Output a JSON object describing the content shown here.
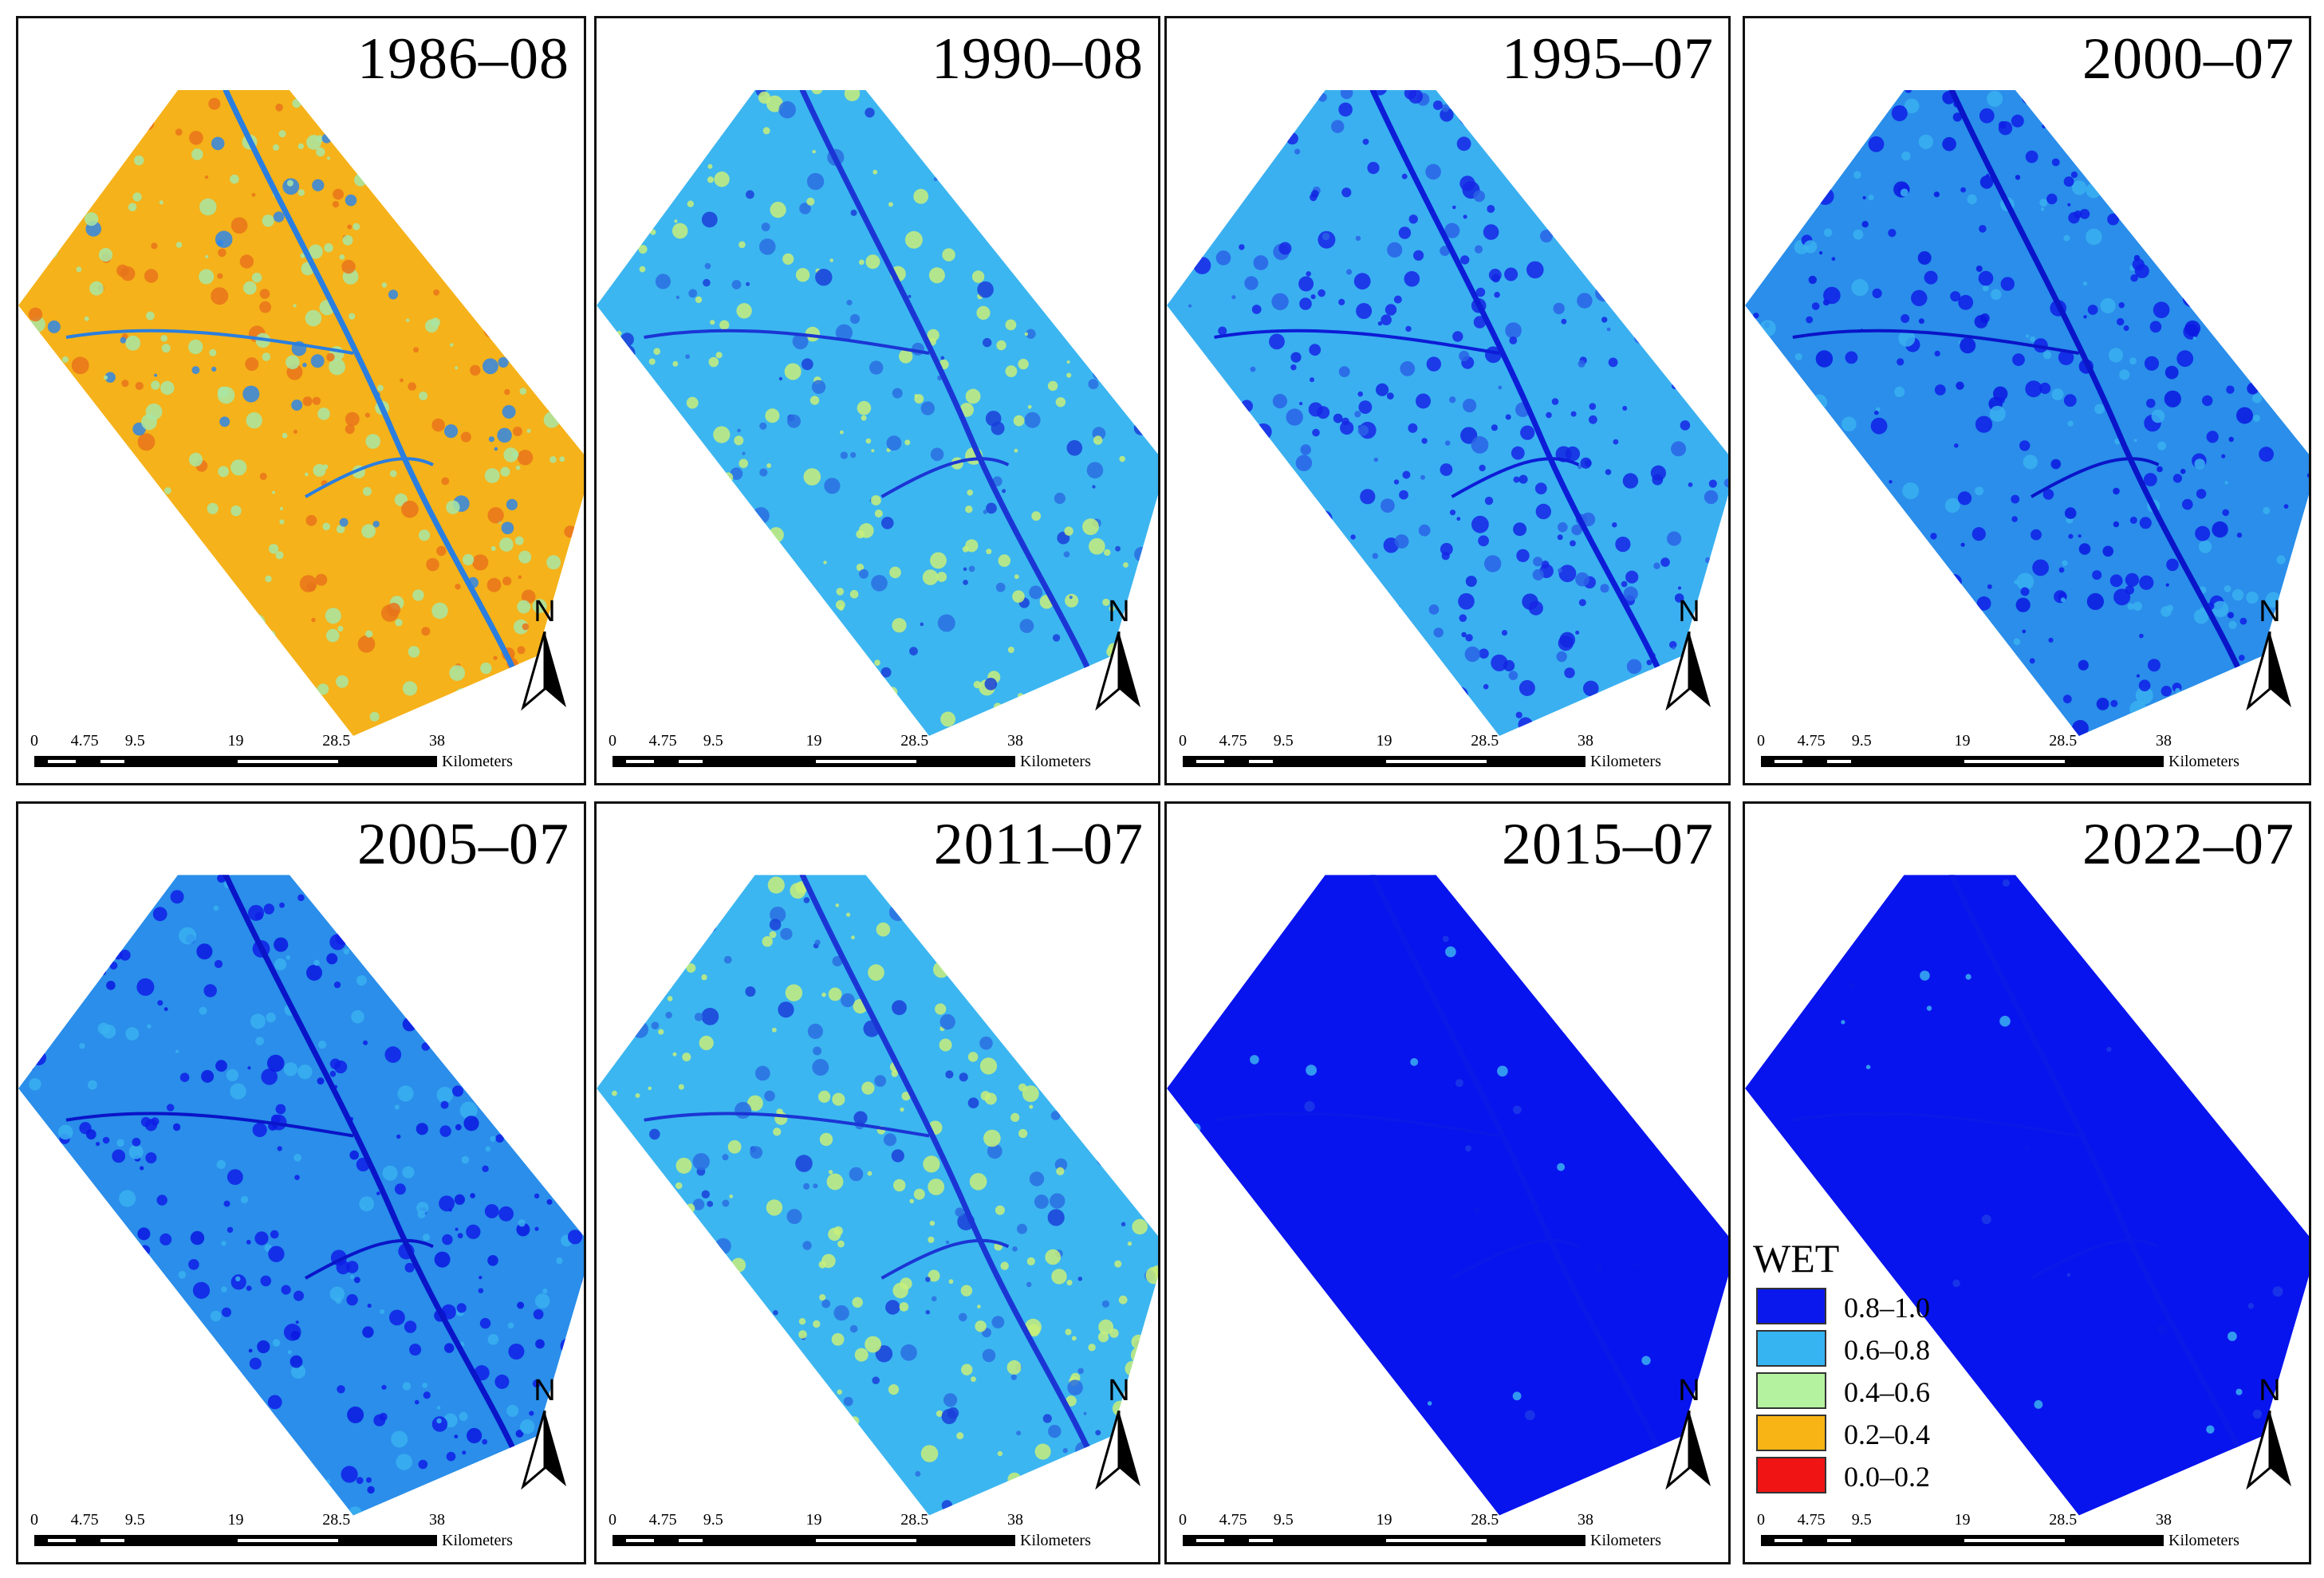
{
  "figure": {
    "panels": [
      {
        "title": "1986–08",
        "theme": "warm"
      },
      {
        "title": "1990–08",
        "theme": "light"
      },
      {
        "title": "1995–07",
        "theme": "mixed"
      },
      {
        "title": "2000–07",
        "theme": "mixed-dark"
      },
      {
        "title": "2005–07",
        "theme": "mixed-dark"
      },
      {
        "title": "2011–07",
        "theme": "light"
      },
      {
        "title": "2015–07",
        "theme": "dark"
      },
      {
        "title": "2022–07",
        "theme": "dark"
      }
    ],
    "north_label": "N",
    "scale_bar": {
      "ticks": [
        "0",
        "4.75",
        "9.5",
        "19",
        "28.5",
        "38"
      ],
      "unit": "Kilometers"
    },
    "legend": {
      "title": "WET",
      "items": [
        {
          "label": "0.8–1.0",
          "color": "#0a18ee"
        },
        {
          "label": "0.6–0.8",
          "color": "#36b4f2"
        },
        {
          "label": "0.4–0.6",
          "color": "#b4f2a0"
        },
        {
          "label": "0.2–0.4",
          "color": "#f7b414"
        },
        {
          "label": "0.0–0.2",
          "color": "#f01414"
        }
      ]
    },
    "theme_colors": {
      "warm": {
        "base": "#f5b21a",
        "a": "#a8e6a4",
        "b": "#e9731b",
        "c": "#2f86e8",
        "river": "#2a7ee0"
      },
      "light": {
        "base": "#3cb6f0",
        "a": "#c8ef7a",
        "b": "#2a6fe2",
        "c": "#1a3fd9",
        "river": "#1b35d4"
      },
      "mixed": {
        "base": "#3ab0f0",
        "a": "#1826e6",
        "b": "#2a63e6",
        "c": "#1226e2",
        "river": "#0d1cd6"
      },
      "mixed-dark": {
        "base": "#2a8eea",
        "a": "#0f1fe6",
        "b": "#3ab0f0",
        "c": "#0a18e0",
        "river": "#0a14c8"
      },
      "dark": {
        "base": "#0814ee",
        "a": "#3ab0f0",
        "b": "#1c3ae6",
        "c": "#0a18e8",
        "river": "#0a18e8"
      }
    }
  }
}
